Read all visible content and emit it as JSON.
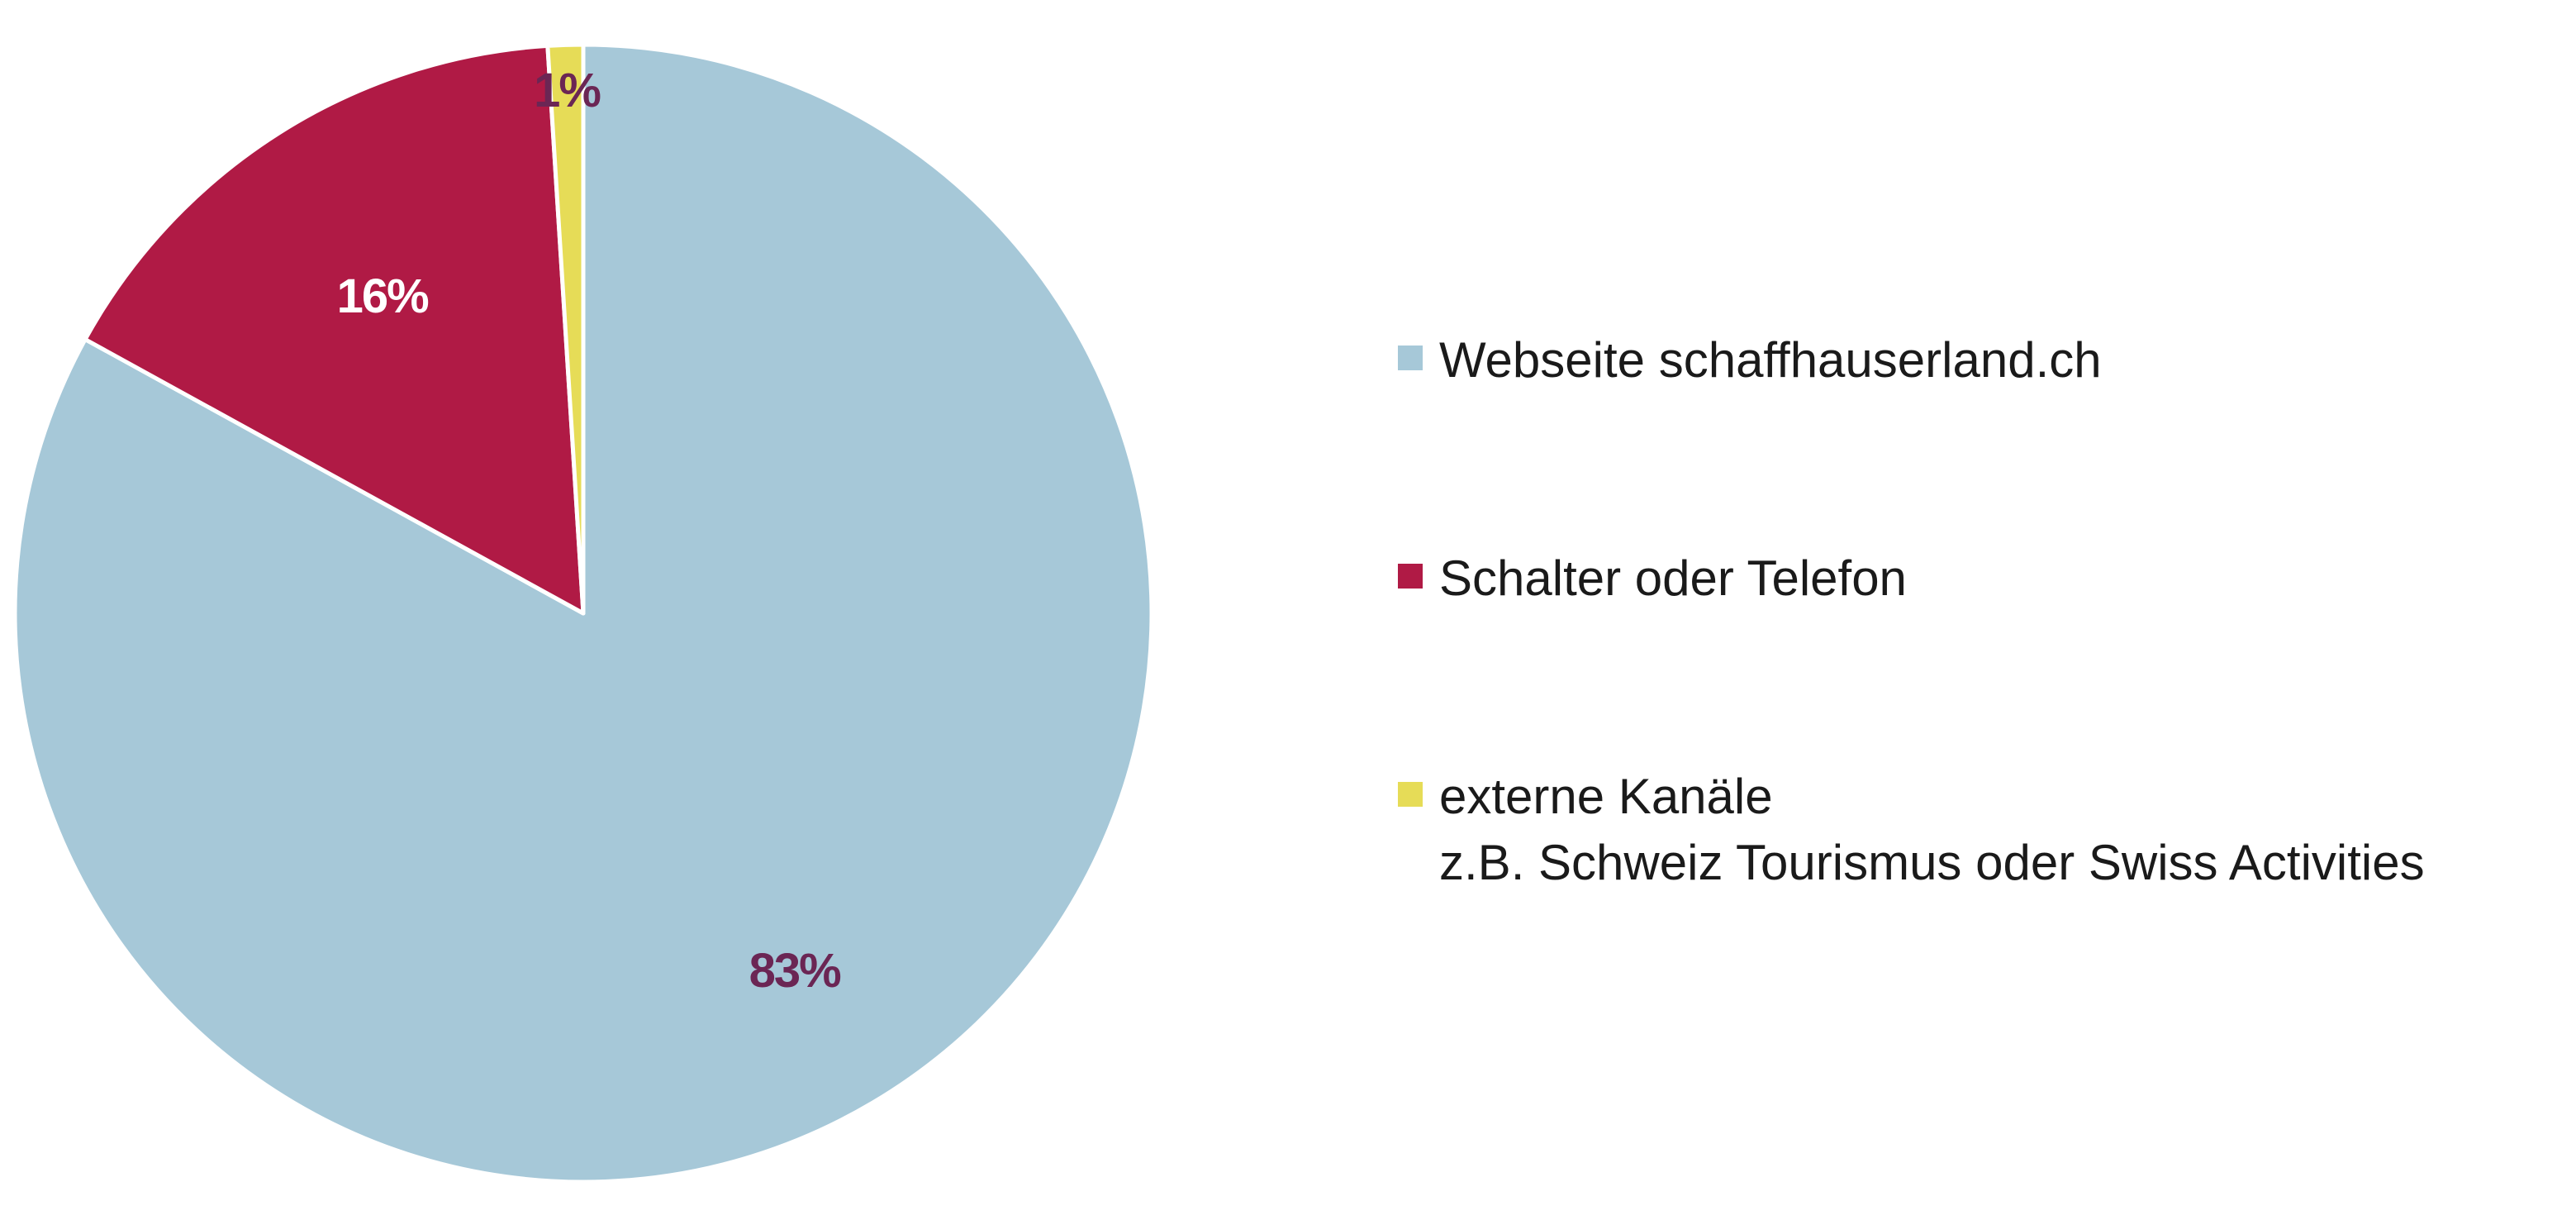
{
  "chart_data": {
    "type": "pie",
    "slices": [
      {
        "name": "Webseite schaffhauserland.ch",
        "value": 83,
        "label": "83%",
        "color": "#a6c8d8",
        "label_color": "#6b2654"
      },
      {
        "name": "Schalter oder Telefon",
        "value": 16,
        "label": "16%",
        "color": "#b01a45",
        "label_color": "#ffffff"
      },
      {
        "name": "externe Kanäle\nz.B. Schweiz Tourismus oder Swiss Activities",
        "value": 1,
        "label": "1%",
        "color": "#e6dc57",
        "label_color": "#6b2654"
      }
    ],
    "start_angle_deg": 0,
    "direction": "clockwise",
    "legend_position": "right"
  },
  "legend": {
    "items": [
      {
        "lines": [
          "Webseite schaffhauserland.ch"
        ],
        "color": "#a6c8d8"
      },
      {
        "lines": [
          "Schalter oder Telefon"
        ],
        "color": "#b01a45"
      },
      {
        "lines": [
          "externe Kanäle",
          "z.B. Schweiz Tourismus oder Swiss Activities"
        ],
        "color": "#e6dc57"
      }
    ]
  }
}
